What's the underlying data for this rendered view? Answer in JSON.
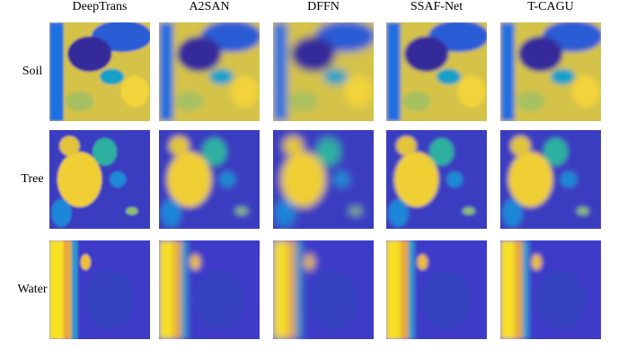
{
  "columns": [
    "DeepTrans",
    "A2SAN",
    "DFFN",
    "SSAF-Net",
    "T-CAGU"
  ],
  "rows": [
    "Soil",
    "Tree",
    "Water"
  ]
}
